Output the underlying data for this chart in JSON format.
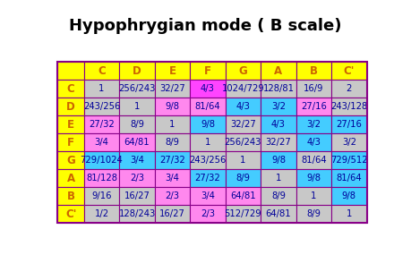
{
  "title": "Hypophrygian mode ( B scale)",
  "col_headers": [
    "",
    "C",
    "D",
    "E",
    "F",
    "G",
    "A",
    "B",
    "C'"
  ],
  "row_headers": [
    "C",
    "D",
    "E",
    "F",
    "G",
    "A",
    "B",
    "C'"
  ],
  "table_data": [
    [
      "1",
      "256/243",
      "32/27",
      "4/3",
      "1024/729",
      "128/81",
      "16/9",
      "2"
    ],
    [
      "243/256",
      "1",
      "9/8",
      "81/64",
      "4/3",
      "3/2",
      "27/16",
      "243/128"
    ],
    [
      "27/32",
      "8/9",
      "1",
      "9/8",
      "32/27",
      "4/3",
      "3/2",
      "27/16"
    ],
    [
      "3/4",
      "64/81",
      "8/9",
      "1",
      "256/243",
      "32/27",
      "4/3",
      "3/2"
    ],
    [
      "729/1024",
      "3/4",
      "27/32",
      "243/256",
      "1",
      "9/8",
      "81/64",
      "729/512"
    ],
    [
      "81/128",
      "2/3",
      "3/4",
      "27/32",
      "8/9",
      "1",
      "9/8",
      "81/64"
    ],
    [
      "9/16",
      "16/27",
      "2/3",
      "3/4",
      "64/81",
      "8/9",
      "1",
      "9/8"
    ],
    [
      "1/2",
      "128/243",
      "16/27",
      "2/3",
      "512/729",
      "64/81",
      "8/9",
      "1"
    ]
  ],
  "precise_colors": [
    [
      "silver",
      "silver",
      "silver",
      "magenta",
      "silver",
      "silver",
      "silver",
      "silver"
    ],
    [
      "silver",
      "silver",
      "pink",
      "pink",
      "cyan",
      "cyan",
      "pink",
      "silver"
    ],
    [
      "pink",
      "silver",
      "silver",
      "cyan",
      "silver",
      "cyan",
      "cyan",
      "cyan"
    ],
    [
      "pink",
      "pink",
      "silver",
      "silver",
      "silver",
      "silver",
      "cyan",
      "silver"
    ],
    [
      "cyan",
      "cyan",
      "cyan",
      "silver",
      "silver",
      "cyan",
      "silver",
      "cyan"
    ],
    [
      "pink",
      "pink",
      "pink",
      "cyan",
      "cyan",
      "silver",
      "cyan",
      "cyan"
    ],
    [
      "silver",
      "silver",
      "pink",
      "pink",
      "pink",
      "silver",
      "silver",
      "cyan"
    ],
    [
      "silver",
      "silver",
      "silver",
      "pink",
      "silver",
      "silver",
      "silver",
      "silver"
    ]
  ],
  "color_map": {
    "silver": "#c8c8c8",
    "magenta": "#ff44ff",
    "pink": "#ff88ee",
    "cyan": "#44ccff"
  },
  "yellow": "#ffff00",
  "header_text_color": "#cc6600",
  "cell_text_color": "#000099",
  "border_color": "#880088",
  "title_fontsize": 13,
  "cell_fontsize": 7.2,
  "header_fontsize": 8.5
}
